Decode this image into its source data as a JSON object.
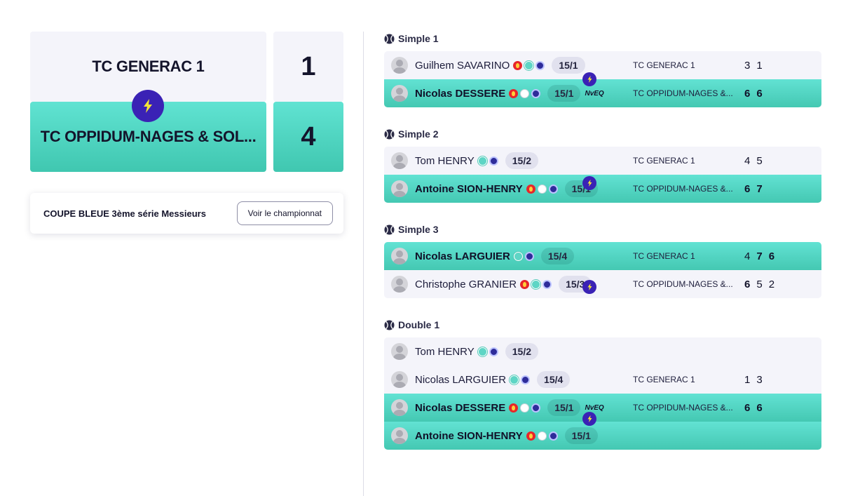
{
  "teams": {
    "home": {
      "name": "TC GENERAC 1",
      "score": "1"
    },
    "away": {
      "name": "TC OPPIDUM-NAGES & SOL...",
      "score": "4"
    }
  },
  "competition": {
    "title": "COUPE BLEUE 3ème série Messieurs",
    "button_label": "Voir le championnat"
  },
  "colors": {
    "winner_bg": "#4fd5c1",
    "loser_bg": "#f4f4fa",
    "badge": "#3a22b5",
    "bolt": "#f5e537"
  },
  "icons": {
    "badge": "lightning-bolt-icon",
    "match": "tennis-ball-icon"
  },
  "matches": [
    {
      "title": "Simple 1",
      "club_top": "TC GENERAC 1",
      "club_bottom": "TC OPPIDUM-NAGES &...",
      "players": [
        {
          "name": "Guilhem SAVARINO",
          "rank": "15/1",
          "extra": ""
        },
        {
          "name": "Nicolas DESSERE",
          "rank": "15/1",
          "extra": "NvEQ"
        }
      ],
      "scores_top": [
        "3",
        "1"
      ],
      "scores_bottom": [
        "6",
        "6"
      ]
    },
    {
      "title": "Simple 2",
      "club_top": "TC GENERAC 1",
      "club_bottom": "TC OPPIDUM-NAGES &...",
      "players": [
        {
          "name": "Tom HENRY",
          "rank": "15/2"
        },
        {
          "name": "Antoine SION-HENRY",
          "rank": "15/1"
        }
      ],
      "scores_top": [
        "4",
        "5"
      ],
      "scores_bottom": [
        "6",
        "7"
      ]
    },
    {
      "title": "Simple 3",
      "club_top": "TC GENERAC 1",
      "club_bottom": "TC OPPIDUM-NAGES &...",
      "players": [
        {
          "name": "Nicolas LARGUIER",
          "rank": "15/4"
        },
        {
          "name": "Christophe GRANIER",
          "rank": "15/3"
        }
      ],
      "scores_top": [
        "4",
        "7",
        "6"
      ],
      "scores_bottom": [
        "6",
        "5",
        "2"
      ]
    },
    {
      "title": "Double 1",
      "club_top": "TC GENERAC 1",
      "club_bottom": "TC OPPIDUM-NAGES &...",
      "players": [
        {
          "name": "Tom HENRY",
          "rank": "15/2"
        },
        {
          "name": "Nicolas LARGUIER",
          "rank": "15/4"
        },
        {
          "name": "Nicolas DESSERE",
          "rank": "15/1",
          "extra": "NvEQ"
        },
        {
          "name": "Antoine SION-HENRY",
          "rank": "15/1"
        }
      ],
      "scores_top": [
        "1",
        "3"
      ],
      "scores_bottom": [
        "6",
        "6"
      ]
    }
  ]
}
